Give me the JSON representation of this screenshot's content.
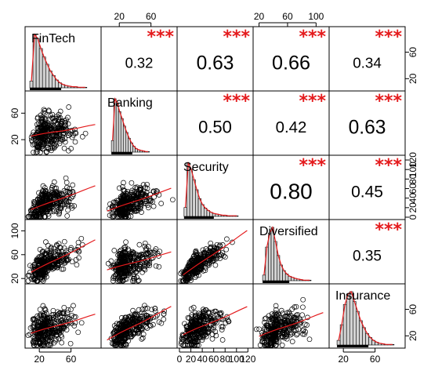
{
  "chart_data": {
    "type": "scatter",
    "title": "",
    "variables": [
      {
        "name": "FinTech",
        "range": [
          5,
          95
        ],
        "ticks": [
          20,
          60
        ]
      },
      {
        "name": "Banking",
        "range": [
          0,
          90
        ],
        "ticks": [
          20,
          60
        ]
      },
      {
        "name": "Security",
        "range": [
          0,
          125
        ],
        "ticks": [
          0,
          20,
          40,
          60,
          80,
          100,
          120
        ]
      },
      {
        "name": "Diversified",
        "range": [
          15,
          115
        ],
        "ticks": [
          20,
          60,
          100
        ]
      },
      {
        "name": "Insurance",
        "range": [
          5,
          95
        ],
        "ticks": [
          20,
          60
        ]
      }
    ],
    "top_axis_ticks": {
      "1": [
        "20",
        "60"
      ],
      "3": [
        "20",
        "60",
        "100"
      ]
    },
    "right_axis_ticks": {
      "0": [
        "20",
        "60"
      ],
      "2": [
        "0",
        "20",
        "40",
        "60",
        "80",
        "100",
        "120"
      ],
      "4": [
        "20",
        "60"
      ]
    },
    "left_axis_ticks": {
      "1": [
        "20",
        "60"
      ],
      "3": [
        "20",
        "60",
        "100"
      ]
    },
    "bottom_axis_ticks": {
      "0": [
        "20",
        "60"
      ],
      "2": [
        "0",
        "20",
        "40",
        "60",
        "80",
        "100",
        "120"
      ],
      "4": [
        "20",
        "60"
      ]
    },
    "correlations": [
      {
        "row": 0,
        "col": 1,
        "value": "0.32",
        "stars": "***"
      },
      {
        "row": 0,
        "col": 2,
        "value": "0.63",
        "stars": "***"
      },
      {
        "row": 0,
        "col": 3,
        "value": "0.66",
        "stars": "***"
      },
      {
        "row": 0,
        "col": 4,
        "value": "0.34",
        "stars": "***"
      },
      {
        "row": 1,
        "col": 2,
        "value": "0.50",
        "stars": "***"
      },
      {
        "row": 1,
        "col": 3,
        "value": "0.42",
        "stars": "***"
      },
      {
        "row": 1,
        "col": 4,
        "value": "0.63",
        "stars": "***"
      },
      {
        "row": 2,
        "col": 3,
        "value": "0.80",
        "stars": "***"
      },
      {
        "row": 2,
        "col": 4,
        "value": "0.45",
        "stars": "***"
      },
      {
        "row": 3,
        "col": 4,
        "value": "0.35",
        "stars": "***"
      }
    ],
    "histograms": [
      {
        "variable": "FinTech",
        "bin_start": 8,
        "bin_width": 4,
        "counts": [
          12,
          95,
          88,
          70,
          55,
          42,
          30,
          22,
          14,
          9,
          6,
          4,
          3,
          2,
          2,
          1,
          1,
          1
        ]
      },
      {
        "variable": "Banking",
        "bin_start": 10,
        "bin_width": 3,
        "counts": [
          20,
          92,
          85,
          70,
          58,
          45,
          34,
          24,
          16,
          10,
          6,
          4,
          3,
          2,
          1,
          1
        ]
      },
      {
        "variable": "Security",
        "bin_start": 8,
        "bin_width": 5,
        "counts": [
          15,
          90,
          80,
          62,
          45,
          30,
          20,
          14,
          10,
          7,
          5,
          4,
          3,
          2,
          2,
          1,
          1,
          1,
          1
        ]
      },
      {
        "variable": "Diversified",
        "bin_start": 25,
        "bin_width": 4,
        "counts": [
          10,
          60,
          85,
          95,
          70,
          45,
          28,
          18,
          12,
          8,
          6,
          4,
          3,
          2,
          1,
          1,
          1
        ]
      },
      {
        "variable": "Insurance",
        "bin_start": 12,
        "bin_width": 4,
        "counts": [
          8,
          35,
          70,
          88,
          92,
          75,
          58,
          42,
          30,
          20,
          13,
          8,
          5,
          3,
          2,
          1,
          1,
          1
        ]
      }
    ],
    "scatter_trend": "red loess smoothing line",
    "colors": {
      "histogram_fill": "#d3d3d3",
      "density_line": "#e41a1c",
      "smooth_line": "#e41a1c",
      "stars": "#e41a1c",
      "points": "#000000"
    }
  }
}
